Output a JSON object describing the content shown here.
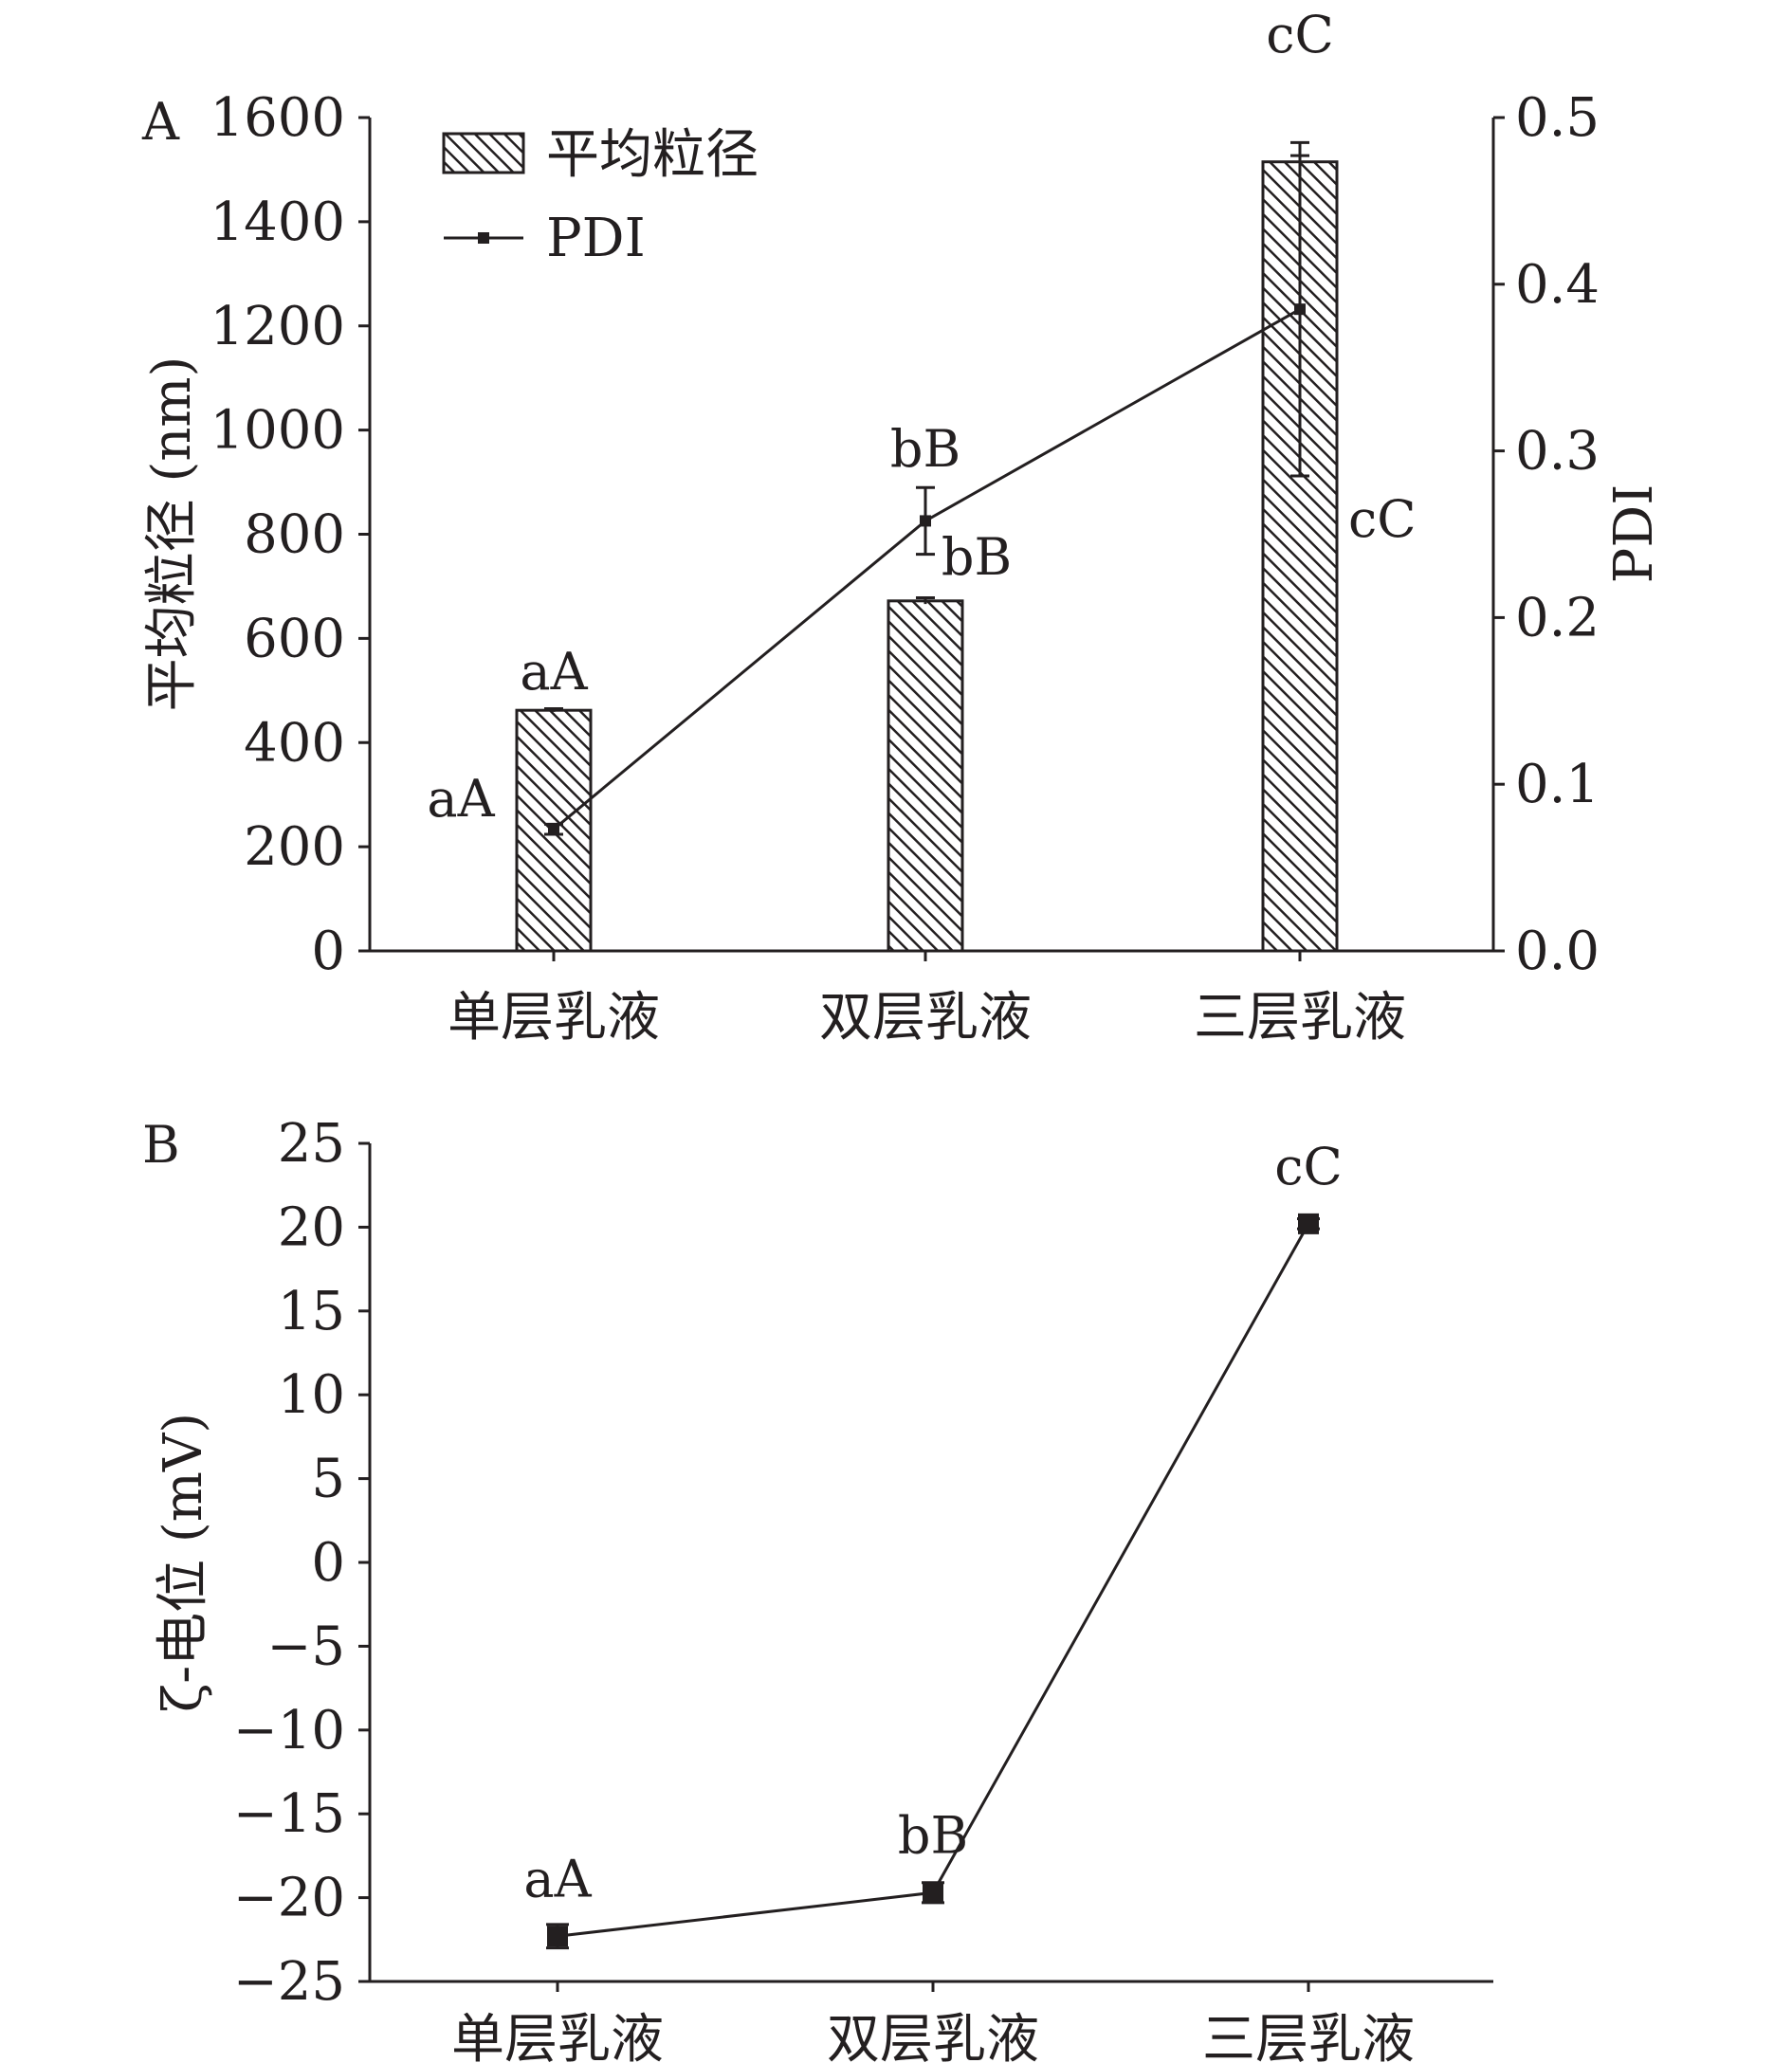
{
  "chart_data": [
    {
      "panel": "A",
      "type": "bar",
      "categories": [
        "单层乳液",
        "双层乳液",
        "三层乳液"
      ],
      "ylabel": "平均粒径 (nm)",
      "y2label": "PDI",
      "ylim": [
        0,
        1600
      ],
      "yticks": [
        0,
        200,
        400,
        600,
        800,
        1000,
        1200,
        1400,
        1600
      ],
      "y2lim": [
        0,
        0.5
      ],
      "y2ticks": [
        "0.0",
        "0.1",
        "0.2",
        "0.3",
        "0.4",
        "0.5"
      ],
      "legend_position": "top-left",
      "grid": false,
      "series": [
        {
          "name": "平均粒径",
          "type": "bar",
          "pattern": "diagonal-hatch",
          "axis": "left",
          "values": [
            462,
            672,
            1515
          ],
          "errors": [
            3,
            6,
            12
          ],
          "labels": [
            "aA",
            "bB",
            "cC"
          ]
        },
        {
          "name": "PDI",
          "type": "line",
          "axis": "right",
          "values": [
            0.073,
            0.258,
            0.385
          ],
          "errors": [
            0.003,
            0.02,
            0.1
          ],
          "labels": [
            "aA",
            "bB",
            "cC"
          ]
        }
      ]
    },
    {
      "panel": "B",
      "type": "line",
      "categories": [
        "单层乳液",
        "双层乳液",
        "三层乳液"
      ],
      "ylabel": "ζ-电位 (mV)",
      "ylim": [
        -25,
        25
      ],
      "yticks": [
        25,
        20,
        15,
        10,
        5,
        0,
        -5,
        -10,
        -15,
        -20,
        -25
      ],
      "ytick_labels": [
        "25",
        "20",
        "15",
        "10",
        "5",
        "0",
        "−5",
        "−10",
        "−15",
        "−20",
        "−25"
      ],
      "grid": false,
      "series": [
        {
          "type": "line",
          "marker": "square",
          "values": [
            -22.3,
            -19.7,
            20.2
          ],
          "errors": [
            0.7,
            0.6,
            0.3
          ],
          "labels": [
            "aA",
            "bB",
            "cC"
          ]
        }
      ]
    }
  ]
}
